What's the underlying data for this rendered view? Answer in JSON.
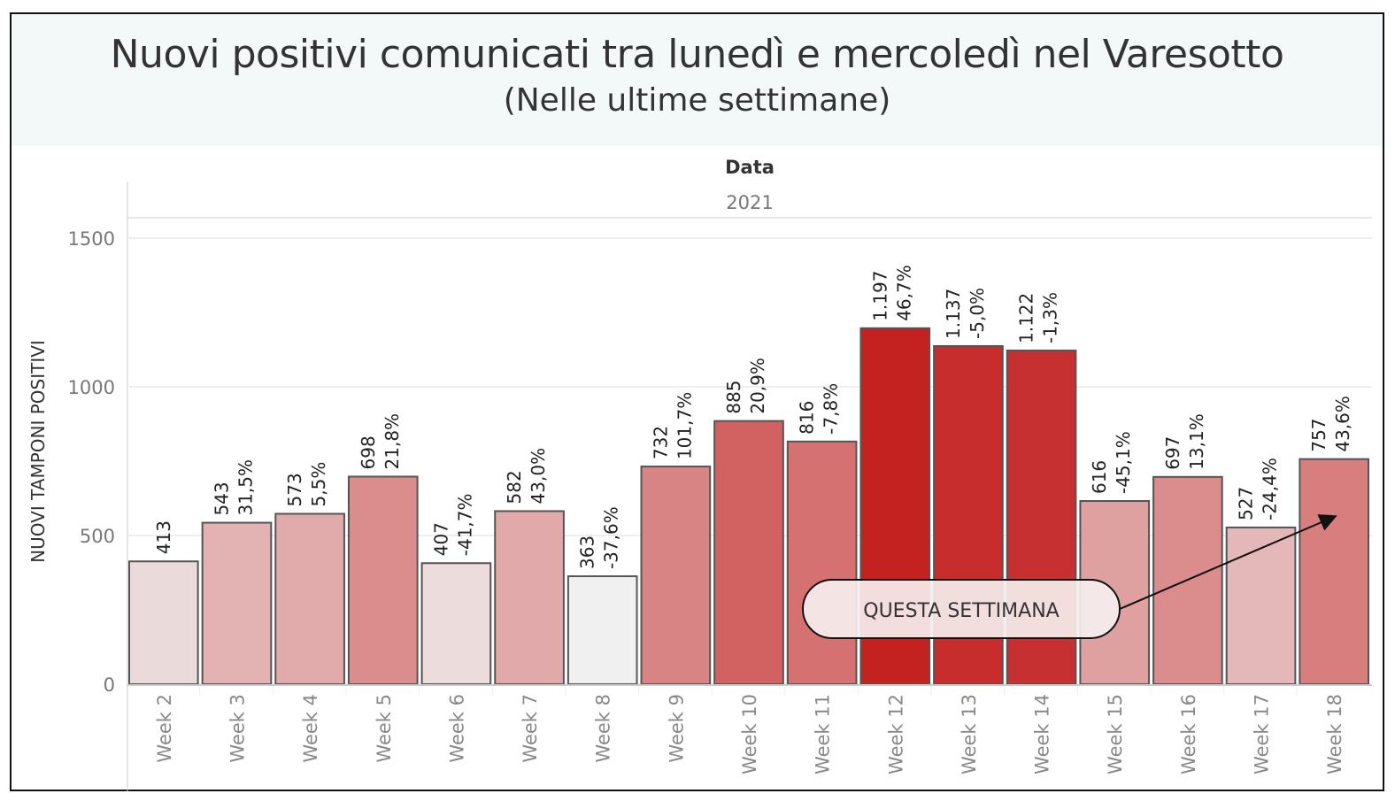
{
  "chart_data": {
    "type": "bar",
    "title": "Nuovi positivi comunicati tra lunedì e mercoledì nel Varesotto",
    "subtitle": "(Nelle ultime settimane)",
    "column_header": "Data",
    "column_value": "2021",
    "ylabel": "NUOVI TAMPONI POSITIVI",
    "ylim": [
      0,
      1650
    ],
    "yticks": [
      "0",
      "500",
      "1000",
      "1500"
    ],
    "grid": true,
    "categories": [
      "Week 2",
      "Week 3",
      "Week 4",
      "Week 5",
      "Week 6",
      "Week 7",
      "Week 8",
      "Week 9",
      "Week 10",
      "Week 11",
      "Week 12",
      "Week 13",
      "Week 14",
      "Week 15",
      "Week 16",
      "Week 17",
      "Week 18"
    ],
    "values": [
      413,
      543,
      573,
      698,
      407,
      582,
      363,
      732,
      885,
      816,
      1197,
      1137,
      1122,
      616,
      697,
      527,
      757
    ],
    "value_labels": [
      "413",
      "543",
      "573",
      "698",
      "407",
      "582",
      "363",
      "732",
      "885",
      "816",
      "1.197",
      "1.137",
      "1.122",
      "616",
      "697",
      "527",
      "757"
    ],
    "pct_labels": [
      "",
      "31,5%",
      "5,5%",
      "21,8%",
      "-41,7%",
      "43,0%",
      "-37,6%",
      "101,7%",
      "20,9%",
      "-7,8%",
      "46,7%",
      "-5,0%",
      "-1,3%",
      "-45,1%",
      "13,1%",
      "-24,4%",
      "43,6%"
    ],
    "annotation": "QUESTA SETTIMANA",
    "colors": {
      "low": "#f0f0f0",
      "high": "#c42121",
      "border": "#555555"
    }
  }
}
